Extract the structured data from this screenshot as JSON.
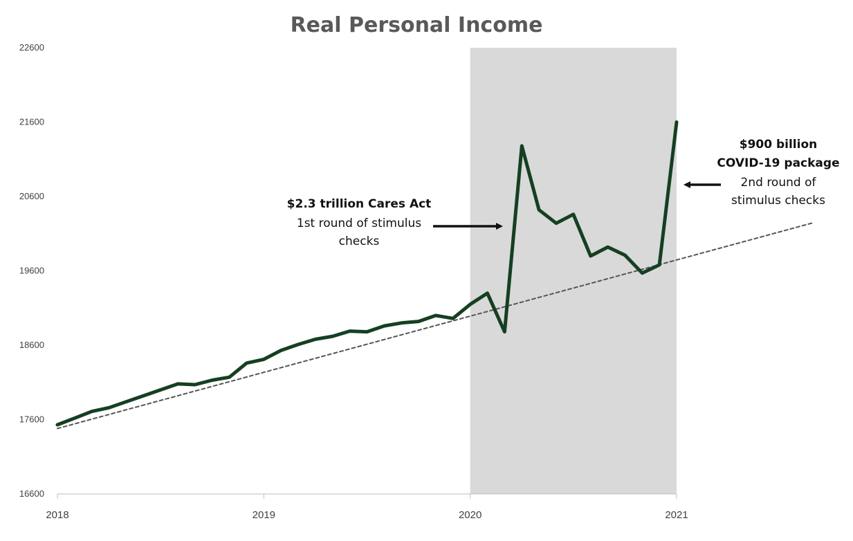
{
  "chart_data": {
    "type": "line",
    "title": "Real Personal Income",
    "xlabel": "",
    "ylabel": "",
    "ylim": [
      16600,
      22600
    ],
    "y_ticks": [
      "22600",
      "21600",
      "20600",
      "19600",
      "18600",
      "17600",
      "16600"
    ],
    "x_ticks": [
      "2018",
      "2019",
      "2020",
      "2021"
    ],
    "x_range": [
      "2018-01",
      "2021-01"
    ],
    "grid": false,
    "legend": "none",
    "shaded_region": {
      "x_start": "2020-01",
      "x_end": "2021-01",
      "color": "#d9d9d9"
    },
    "series": [
      {
        "style": "solid",
        "color": "#163f22",
        "x": [
          "2018-01",
          "2018-02",
          "2018-03",
          "2018-04",
          "2018-05",
          "2018-06",
          "2018-07",
          "2018-08",
          "2018-09",
          "2018-10",
          "2018-11",
          "2018-12",
          "2019-01",
          "2019-02",
          "2019-03",
          "2019-04",
          "2019-05",
          "2019-06",
          "2019-07",
          "2019-08",
          "2019-09",
          "2019-10",
          "2019-11",
          "2019-12",
          "2020-01",
          "2020-02",
          "2020-03",
          "2020-04",
          "2020-05",
          "2020-06",
          "2020-07",
          "2020-08",
          "2020-09",
          "2020-10",
          "2020-11",
          "2020-12",
          "2021-01"
        ],
        "values": [
          17530,
          17620,
          17710,
          17760,
          17840,
          17920,
          18000,
          18080,
          18070,
          18130,
          18170,
          18360,
          18410,
          18530,
          18610,
          18680,
          18720,
          18790,
          18780,
          18860,
          18900,
          18920,
          19000,
          18960,
          19150,
          19300,
          18780,
          21280,
          20420,
          20240,
          20360,
          19800,
          19920,
          19810,
          19570,
          19680,
          21600
        ]
      },
      {
        "style": "dashed",
        "color": "#555555",
        "x": [
          "2018-01",
          "2021-09"
        ],
        "values": [
          17480,
          20250
        ]
      }
    ],
    "annotations": [
      {
        "lines": [
          "$2.3 trillion Cares Act",
          "1st round of stimulus",
          "checks"
        ],
        "bold_first": true
      },
      {
        "lines": [
          "$900 billion",
          "COVID-19 package",
          "2nd round of",
          "stimulus checks"
        ],
        "bold_count": 2
      }
    ]
  }
}
